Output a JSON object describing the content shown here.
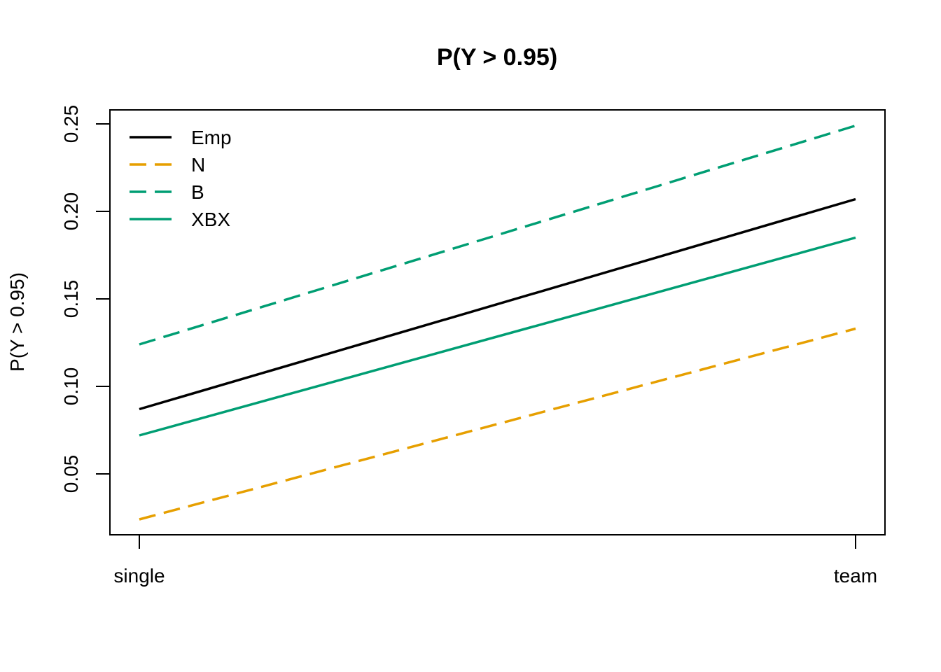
{
  "chart_data": {
    "type": "line",
    "title": "P(Y > 0.95)",
    "xlabel": "",
    "ylabel": "P(Y > 0.95)",
    "categories": [
      "single",
      "team"
    ],
    "yticks": [
      0.05,
      0.1,
      0.15,
      0.2,
      0.25
    ],
    "ytick_labels": [
      "0.05",
      "0.10",
      "0.15",
      "0.20",
      "0.25"
    ],
    "ylim": [
      0.015,
      0.257
    ],
    "grid": false,
    "legend_position": "top-left",
    "series": [
      {
        "name": "Emp",
        "values": [
          0.087,
          0.207
        ],
        "color": "#000000",
        "dash": "solid"
      },
      {
        "name": "N",
        "values": [
          0.024,
          0.133
        ],
        "color": "#E69F00",
        "dash": "dashed"
      },
      {
        "name": "B",
        "values": [
          0.124,
          0.249
        ],
        "color": "#009E73",
        "dash": "dashed"
      },
      {
        "name": "XBX",
        "values": [
          0.072,
          0.185
        ],
        "color": "#009E73",
        "dash": "solid"
      }
    ]
  }
}
